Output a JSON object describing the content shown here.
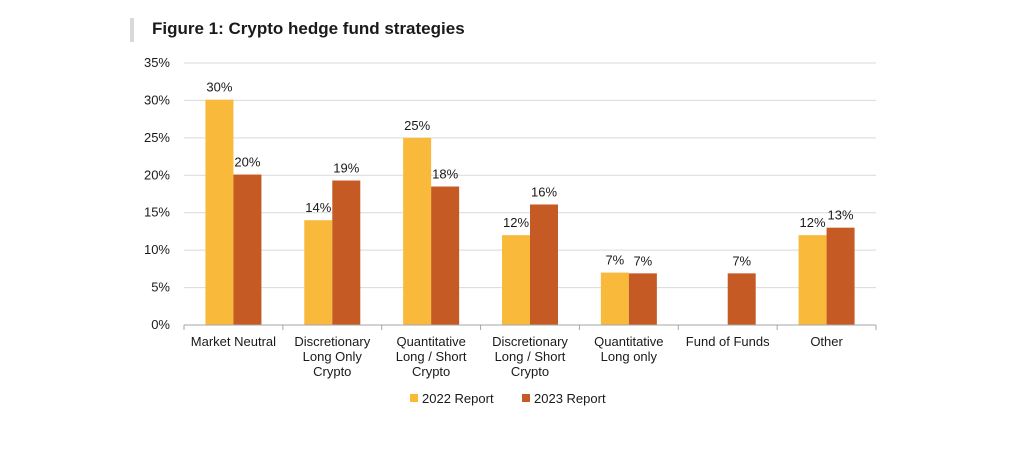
{
  "figure": {
    "title": "Figure 1: Crypto hedge fund strategies"
  },
  "chart_data": {
    "type": "bar",
    "title": "Figure 1: Crypto hedge fund strategies",
    "xlabel": "",
    "ylabel": "",
    "ylim": [
      0,
      35
    ],
    "yticks": [
      "0%",
      "5%",
      "10%",
      "15%",
      "20%",
      "25%",
      "30%",
      "35%"
    ],
    "ytick_values": [
      0,
      5,
      10,
      15,
      20,
      25,
      30,
      35
    ],
    "grid": true,
    "legend_position": "bottom",
    "categories": [
      [
        "Market Neutral"
      ],
      [
        "Discretionary",
        "Long Only",
        "Crypto"
      ],
      [
        "Quantitative",
        "Long / Short",
        "Crypto"
      ],
      [
        "Discretionary",
        "Long / Short",
        "Crypto"
      ],
      [
        "Quantitative",
        "Long only"
      ],
      [
        "Fund of Funds"
      ],
      [
        "Other"
      ]
    ],
    "series": [
      {
        "name": "2022 Report",
        "color": "#f9b93b",
        "values": [
          30.1,
          14.0,
          25.0,
          12.0,
          7.0,
          null,
          12.0
        ],
        "labels": [
          "30%",
          "14%",
          "25%",
          "12%",
          "7%",
          "",
          "12%"
        ]
      },
      {
        "name": "2023 Report",
        "color": "#c55a24",
        "values": [
          20.1,
          19.3,
          18.5,
          16.1,
          6.9,
          6.9,
          13.0
        ],
        "labels": [
          "20%",
          "19%",
          "18%",
          "16%",
          "7%",
          "7%",
          "13%"
        ]
      }
    ]
  }
}
